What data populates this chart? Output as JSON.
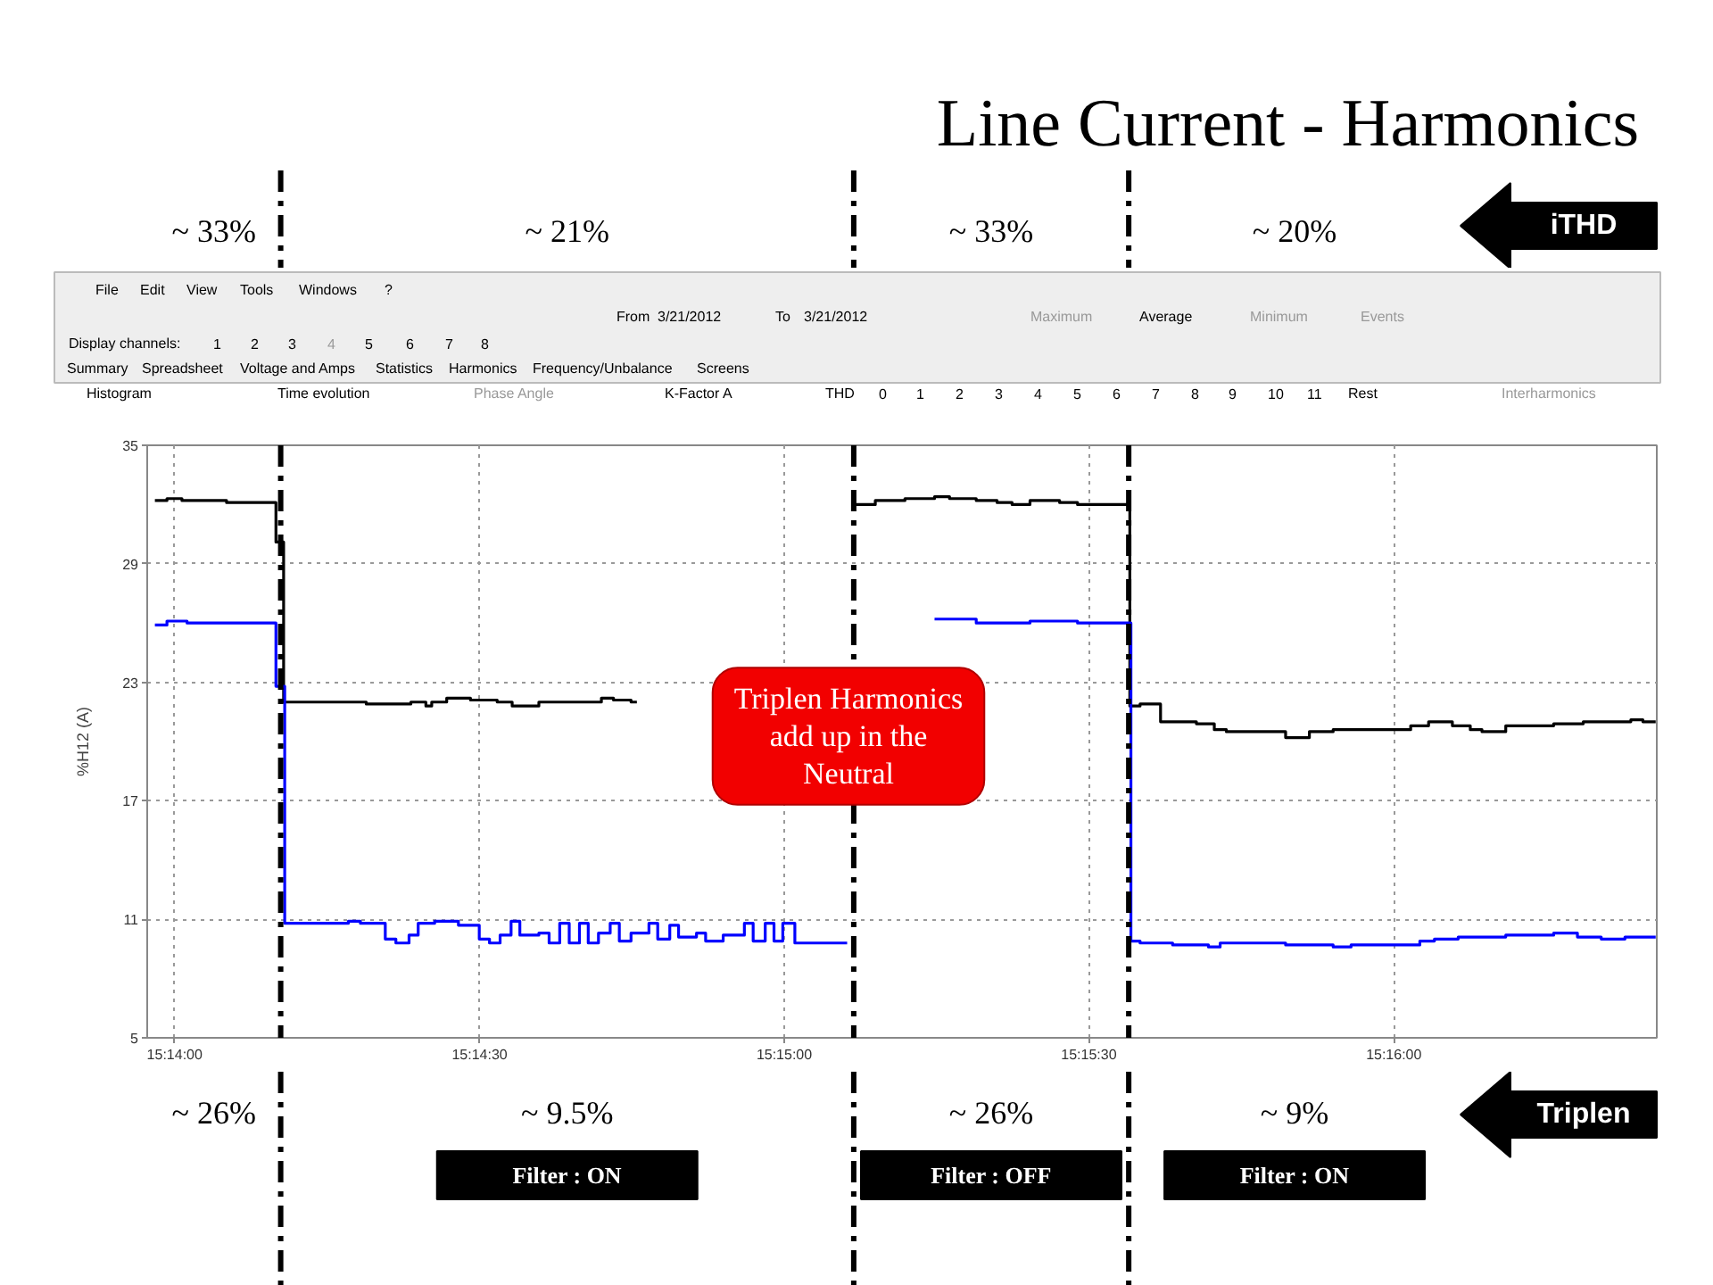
{
  "chart_data": {
    "type": "step",
    "title": "Line Current - Harmonics",
    "ylabel": "%H12 (A)",
    "annotations": [
      "~ 33%",
      "~ 21%",
      "~ 33%",
      "~ 20%",
      "iTHD",
      "~ 26%",
      "~ 9.5%",
      "~ 26%",
      "~ 9%",
      "Triplen",
      "Filter : ON",
      "Filter : OFF",
      "Filter : ON",
      "Triplen Harmonics add up in the Neutral",
      "File",
      "Edit",
      "View",
      "Tools",
      "Windows",
      "?",
      "From",
      "3/21/2012",
      "To",
      "3/21/2012",
      "Maximum",
      "Average",
      "Minimum",
      "Events",
      "Display channels:",
      "1",
      "2",
      "3",
      "4",
      "5",
      "6",
      "7",
      "8",
      "Summary",
      "Spreadsheet",
      "Voltage and Amps",
      "Statistics",
      "Harmonics",
      "Frequency/Unbalance",
      "Screens",
      "Histogram",
      "Time evolution",
      "Phase Angle",
      "K-Factor A",
      "THD",
      "0",
      "1",
      "2",
      "3",
      "4",
      "5",
      "6",
      "7",
      "8",
      "9",
      "10",
      "11",
      "Rest",
      "Interharmonics"
    ],
    "xlim": [
      15.23258,
      15.27386
    ],
    "ylim": [
      5,
      35
    ],
    "xticks": [
      {
        "value": 15.23333,
        "label": "15:14:00"
      },
      {
        "value": 15.24167,
        "label": "15:14:30"
      },
      {
        "value": 15.25,
        "label": "15:15:00"
      },
      {
        "value": 15.25833,
        "label": "15:15:30"
      },
      {
        "value": 15.26667,
        "label": "15:16:00"
      }
    ],
    "yticks": [
      5,
      11,
      17,
      23,
      29,
      35
    ],
    "grid": true,
    "ref_lines": [
      {
        "axis": "x",
        "value": 15.23623,
        "color": "#000000",
        "line_style": "dashdot"
      },
      {
        "axis": "x",
        "value": 15.2519,
        "color": "#000000",
        "line_style": "dashdot"
      },
      {
        "axis": "x",
        "value": 15.25942,
        "color": "#000000",
        "line_style": "dashdot"
      }
    ],
    "series": [
      {
        "color": "#000000",
        "x": [
          15.23279,
          15.23312,
          15.23353,
          15.23475,
          15.2361,
          15.23631,
          15.23857,
          15.23979,
          15.2402,
          15.24036,
          15.24077,
          15.24142,
          15.24215,
          15.24256,
          15.24329,
          15.245,
          15.24533,
          15.24581,
          15.24597,
          15.25192,
          15.25249,
          15.2533,
          15.25411,
          15.25452,
          15.25525,
          15.25582,
          15.25623,
          15.25672,
          15.25753,
          15.25802,
          15.25945,
          15.25973,
          15.26029,
          15.26127,
          15.26176,
          15.26209,
          15.26371,
          15.26436,
          15.26501,
          15.26713,
          15.26762,
          15.26827,
          15.26876,
          15.26908,
          15.26973,
          15.27104,
          15.27185,
          15.27315,
          15.27348,
          15.27383
        ],
        "values": [
          32.2,
          32.3,
          32.2,
          32.1,
          30.1,
          22.0,
          21.9,
          22.0,
          21.8,
          22.0,
          22.2,
          22.1,
          22.0,
          21.8,
          22.0,
          22.2,
          22.1,
          22.0,
          null,
          32.0,
          32.2,
          32.3,
          32.4,
          32.3,
          32.2,
          32.1,
          32.0,
          32.2,
          32.1,
          32.0,
          21.8,
          21.9,
          21.0,
          20.9,
          20.6,
          20.5,
          20.2,
          20.5,
          20.6,
          20.8,
          21.0,
          20.8,
          20.6,
          20.5,
          20.8,
          20.9,
          21.0,
          21.1,
          21.0,
          21.0
        ]
      },
      {
        "color": "#0000ff",
        "x": [
          15.23279,
          15.23312,
          15.23367,
          15.2361,
          15.23634,
          15.23808,
          15.23841,
          15.23909,
          15.23938,
          15.23974,
          15.23999,
          15.24044,
          15.24109,
          15.24166,
          15.24194,
          15.24223,
          15.24253,
          15.24277,
          15.24329,
          15.24357,
          15.24386,
          15.24412,
          15.2444,
          15.24464,
          15.24492,
          15.24524,
          15.24549,
          15.24581,
          15.2463,
          15.24654,
          15.24687,
          15.24711,
          15.2476,
          15.24785,
          15.24833,
          15.24891,
          15.24915,
          15.24948,
          15.24972,
          15.24996,
          15.25029,
          15.25172,
          15.25411,
          15.25525,
          15.25672,
          15.25802,
          15.25948,
          15.25973,
          15.26062,
          15.2616,
          15.26192,
          15.26371,
          15.26501,
          15.2655,
          15.26738,
          15.26778,
          15.26843,
          15.26973,
          15.27104,
          15.27169,
          15.27234,
          15.27299,
          15.27383
        ],
        "values": [
          25.9,
          26.1,
          26.0,
          22.8,
          10.8,
          10.9,
          10.8,
          10.0,
          9.8,
          10.2,
          10.8,
          10.9,
          10.7,
          10.0,
          9.8,
          10.2,
          10.9,
          10.2,
          10.3,
          9.8,
          10.8,
          9.8,
          10.8,
          9.8,
          10.3,
          10.8,
          9.9,
          10.3,
          10.8,
          10.0,
          10.7,
          10.1,
          10.3,
          9.9,
          10.2,
          10.8,
          9.9,
          10.8,
          9.9,
          10.8,
          9.8,
          null,
          26.2,
          26.0,
          26.1,
          26.0,
          9.9,
          9.8,
          9.7,
          9.6,
          9.8,
          9.7,
          9.6,
          9.7,
          9.9,
          10.0,
          10.1,
          10.2,
          10.3,
          10.1,
          10.0,
          10.1,
          10.1
        ]
      }
    ]
  }
}
